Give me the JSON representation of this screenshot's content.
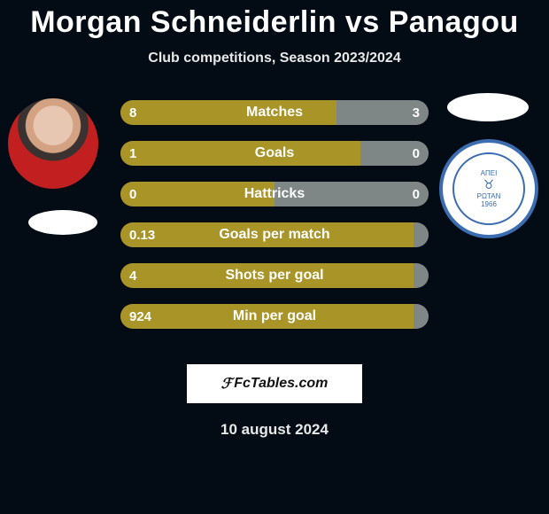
{
  "title": "Morgan Schneiderlin vs Panagou",
  "subtitle": "Club competitions, Season 2023/2024",
  "brand": "FcTables.com",
  "date": "10 august 2024",
  "colors": {
    "left": "#a99428",
    "right": "#7e8786",
    "track": "#3a3a3a",
    "text": "#ffffff",
    "crest": "#3c6db0"
  },
  "crest": {
    "top_text": "ΑΠΕΙ",
    "mid_text": "ΡΩΤΑΝ",
    "year": "1966"
  },
  "bars": [
    {
      "label": "Matches",
      "left": "8",
      "right": "3",
      "lw": 70,
      "rw": 30
    },
    {
      "label": "Goals",
      "left": "1",
      "right": "0",
      "lw": 78,
      "rw": 22
    },
    {
      "label": "Hattricks",
      "left": "0",
      "right": "0",
      "lw": 50,
      "rw": 50
    },
    {
      "label": "Goals per match",
      "left": "0.13",
      "right": "",
      "lw": 95,
      "rw": 5
    },
    {
      "label": "Shots per goal",
      "left": "4",
      "right": "",
      "lw": 95,
      "rw": 5
    },
    {
      "label": "Min per goal",
      "left": "924",
      "right": "",
      "lw": 95,
      "rw": 5
    }
  ]
}
